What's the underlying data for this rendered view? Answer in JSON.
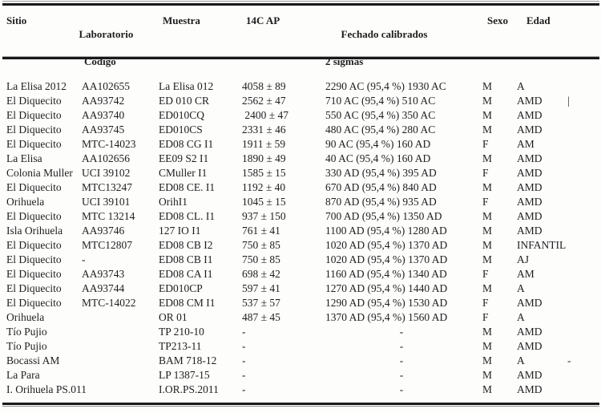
{
  "page": {
    "background": "#fdfdfc",
    "text_color": "#1e1e1e",
    "rule_color": "#191919"
  },
  "table": {
    "headers": {
      "sitio": "Sitio",
      "laboratorio_line1": "Laboratorio",
      "laboratorio_line2": "Código",
      "muestra": "Muestra",
      "c14ap": "14C AP",
      "fechado_line1": "Fechado calibrados",
      "fechado_line2": "2 sigmas",
      "sexo": "Sexo",
      "edad": "Edad"
    },
    "rows": [
      {
        "sitio": "La Elisa 2012",
        "laboratorio": "AA102655",
        "muestra": "La Elisa 012",
        "c14ap": "4058 ± 89",
        "fechado": "2290 AC (95,4 %) 1930 AC",
        "sexo": "M",
        "edad": "A",
        "extra": ""
      },
      {
        "sitio": "El Diquecito",
        "laboratorio": "AA93742",
        "muestra": "ED 010 CR",
        "c14ap": "2562 ± 47",
        "fechado": "710 AC (95,4 %) 510 AC",
        "sexo": "M",
        "edad": "AMD",
        "extra": "|"
      },
      {
        "sitio": "El Diquecito",
        "laboratorio": "AA93740",
        "muestra": "ED010CQ",
        "c14ap": " 2400 ± 47",
        "fechado": "550 AC (95,4 %) 350 AC",
        "sexo": "M",
        "edad": "AMD",
        "extra": ""
      },
      {
        "sitio": "El Diquecito",
        "laboratorio": "AA93745",
        "muestra": "ED010CS",
        "c14ap": "2331 ± 46",
        "fechado": "480 AC (95,4 %) 280 AC",
        "sexo": "M",
        "edad": "AMD",
        "extra": ""
      },
      {
        "sitio": "El Diquecito",
        "laboratorio": "MTC-14023",
        "muestra": "ED08 CG I1",
        "c14ap": "1911 ± 59",
        "fechado": "90 AC (95,4 %) 160 AD",
        "sexo": "F",
        "edad": "AM",
        "extra": ""
      },
      {
        "sitio": "La Elisa",
        "laboratorio": "AA102656",
        "muestra": "EE09 S2 I1",
        "c14ap": "1890 ± 49",
        "fechado": "40 AC (95,4 %) 160 AD",
        "sexo": "M",
        "edad": "AMD",
        "extra": ""
      },
      {
        "sitio": "Colonia Muller",
        "laboratorio": "UCI 39102",
        "muestra": "CMuller I1",
        "c14ap": "1585 ± 15",
        "fechado": "330 AD (95,4 %) 395 AD",
        "sexo": "F",
        "edad": "AMD",
        "extra": ""
      },
      {
        "sitio": "El Diquecito",
        "laboratorio": "MTC13247",
        "muestra": "ED08 CE. I1",
        "c14ap": "1192 ± 40",
        "fechado": "670 AD (95,4 %) 840 AD",
        "sexo": "M",
        "edad": "AMD",
        "extra": ""
      },
      {
        "sitio": "Orihuela",
        "laboratorio": "UCI 39101",
        "muestra": "OrihI1",
        "c14ap": "1045 ± 15",
        "fechado": "870 AD (95,4 %) 935 AD",
        "sexo": "F",
        "edad": "AMD",
        "extra": ""
      },
      {
        "sitio": "El Diquecito",
        "laboratorio": "MTC 13214",
        "muestra": "ED08 CL. I1",
        "c14ap": "937 ± 150",
        "fechado": "700 AD (95,4 %) 1350 AD",
        "sexo": "M",
        "edad": "AMD",
        "extra": ""
      },
      {
        "sitio": "Isla Orihuela",
        "laboratorio": "AA93746",
        "muestra": "127 IO I1",
        "c14ap": "761 ± 41",
        "fechado": "1100 AD (95,4 %) 1280 AD",
        "sexo": "M",
        "edad": "AMD",
        "extra": ""
      },
      {
        "sitio": "El Diquecito",
        "laboratorio": "MTC12807",
        "muestra": "ED08 CB I2",
        "c14ap": "750 ± 85",
        "fechado": "1020 AD (95,4 %) 1370 AD",
        "sexo": "M",
        "edad": "INFANTIL",
        "extra": ""
      },
      {
        "sitio": "El Diquecito",
        "laboratorio": "-",
        "muestra": "ED08 CB I1",
        "c14ap": "750 ± 85",
        "fechado": "1020 AD (95,4 %) 1370 AD",
        "sexo": "M",
        "edad": "AJ",
        "extra": ""
      },
      {
        "sitio": "El Diquecito",
        "laboratorio": "AA93743",
        "muestra": "ED08 CA I1",
        "c14ap": "698 ± 42",
        "fechado": "1160 AD (95,4 %) 1340 AD",
        "sexo": "F",
        "edad": "AM",
        "extra": ""
      },
      {
        "sitio": "El Diquecito",
        "laboratorio": "AA93744",
        "muestra": "ED010CP",
        "c14ap": "597 ± 41",
        "fechado": "1270 AD (95,4 %) 1440 AD",
        "sexo": "M",
        "edad": "A",
        "extra": ""
      },
      {
        "sitio": "El Diquecito",
        "laboratorio": "MTC-14022",
        "muestra": "ED08 CM I1",
        "c14ap": "537 ± 57",
        "fechado": "1290 AD (95,4 %) 1530 AD",
        "sexo": "F",
        "edad": "AMD",
        "extra": ""
      },
      {
        "sitio": "Orihuela",
        "laboratorio": "",
        "muestra": "OR 01",
        "c14ap": "487 ± 45",
        "fechado": "1370 AD (95,4 %) 1560 AD",
        "sexo": "F",
        "edad": "A",
        "extra": ""
      },
      {
        "sitio": "Tío Pujio",
        "laboratorio": "",
        "muestra": "TP 210-10",
        "c14ap": "-",
        "fechado": "-",
        "sexo": "M",
        "edad": "AMD",
        "extra": ""
      },
      {
        "sitio": "Tío Pujio",
        "laboratorio": "",
        "muestra": "TP213-11",
        "c14ap": "-",
        "fechado": "-",
        "sexo": "M",
        "edad": "AMD",
        "extra": ""
      },
      {
        "sitio": "Bocassi AM",
        "laboratorio": "",
        "muestra": "BAM 718-12",
        "c14ap": "-",
        "fechado": "-",
        "sexo": "M",
        "edad": "A",
        "extra": "-"
      },
      {
        "sitio": "La Para",
        "laboratorio": "",
        "muestra": "LP 1387-15",
        "c14ap": "-",
        "fechado": "-",
        "sexo": "M",
        "edad": "AMD",
        "extra": ""
      },
      {
        "sitio": "I. Orihuela PS.011",
        "laboratorio": "",
        "muestra": "I.OR.PS.2011",
        "c14ap": "-",
        "fechado": "-",
        "sexo": "M",
        "edad": "AMD",
        "extra": ""
      }
    ]
  }
}
